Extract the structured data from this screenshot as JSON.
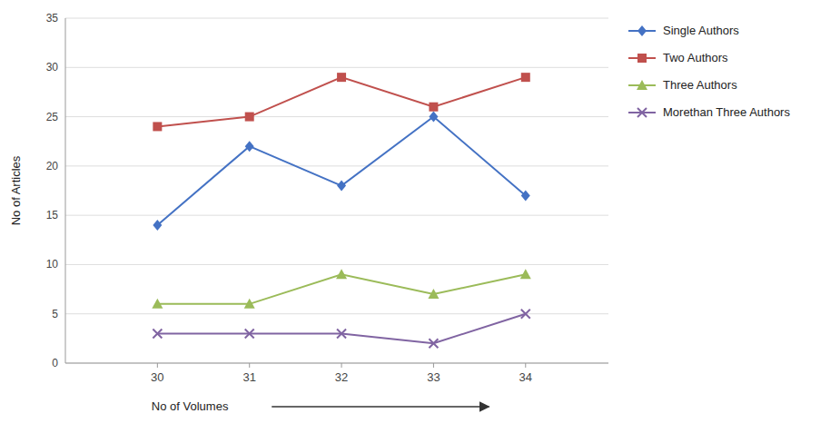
{
  "chart_data": {
    "type": "line",
    "x": [
      30,
      31,
      32,
      33,
      34
    ],
    "xlim": [
      29.0,
      34.9
    ],
    "xticks": [
      30,
      31,
      32,
      33,
      34
    ],
    "ylim": [
      0,
      35
    ],
    "yticks": [
      0,
      5,
      10,
      15,
      20,
      25,
      30,
      35
    ],
    "xlabel": "No of Volumes",
    "ylabel": "No of Articles",
    "grid": true,
    "legend": "right",
    "series": [
      {
        "name": "Single Authors",
        "color": "#4472C4",
        "marker": "diamond",
        "values": [
          14,
          22,
          18,
          25,
          17
        ]
      },
      {
        "name": "Two Authors",
        "color": "#C0504D",
        "marker": "square",
        "values": [
          24,
          25,
          29,
          26,
          29
        ]
      },
      {
        "name": "Three Authors",
        "color": "#9BBB59",
        "marker": "triangle",
        "values": [
          6,
          6,
          9,
          7,
          9
        ]
      },
      {
        "name": "Morethan Three Authors",
        "color": "#8064A2",
        "marker": "x",
        "values": [
          3,
          3,
          3,
          2,
          5
        ]
      }
    ]
  }
}
